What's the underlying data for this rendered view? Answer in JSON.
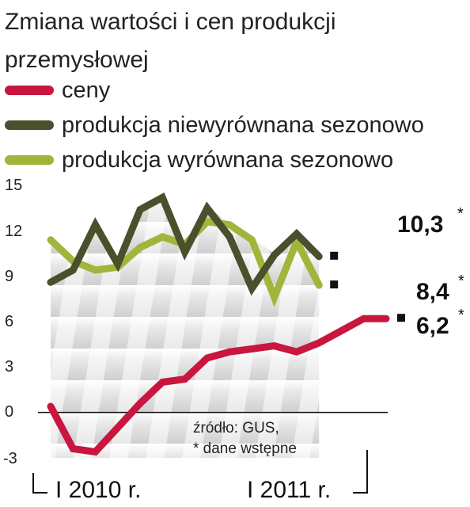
{
  "title": "Zmiana wartości  i cen produkcji przemysłowej",
  "legend": [
    {
      "label": "ceny",
      "color": "#c8163f"
    },
    {
      "label": "produkcja niewyrównana sezonowo",
      "color": "#4b4f2c"
    },
    {
      "label": "produkcja wyrównana sezonowo",
      "color": "#9fb63a"
    }
  ],
  "source_line1": "źródło: GUS,",
  "source_line2": "* dane wstępne",
  "period_labels": [
    "I 2010 r.",
    "I 2011 r."
  ],
  "end_labels": [
    {
      "value": "10,3",
      "star": "*"
    },
    {
      "value": "8,4",
      "star": "*"
    },
    {
      "value": "6,2",
      "star": "*"
    }
  ],
  "chart_data": {
    "type": "line",
    "title": "Zmiana wartości  i cen produkcji przemysłowej",
    "y_ticks": [
      "15",
      "12",
      "9",
      "6",
      "3",
      "0",
      "-3"
    ],
    "ylim": [
      -3,
      15
    ],
    "x_labels": [
      "I 2010 r.",
      "I 2011 r."
    ],
    "points": 16,
    "series": [
      {
        "name": "ceny",
        "color": "#c8163f",
        "values": [
          0.4,
          -2.4,
          -2.6,
          -1.0,
          0.6,
          2.0,
          2.2,
          3.6,
          4.0,
          4.2,
          4.4,
          4.0,
          4.6,
          5.4,
          6.2,
          6.2
        ]
      },
      {
        "name": "produkcja niewyrównana sezonowo",
        "color": "#4b4f2c",
        "values": [
          8.6,
          9.4,
          12.4,
          9.8,
          13.4,
          14.2,
          10.6,
          13.5,
          11.6,
          8.2,
          10.4,
          11.8,
          10.3
        ]
      },
      {
        "name": "produkcja wyrównana sezonowo",
        "color": "#9fb63a",
        "values": [
          11.4,
          10.0,
          9.4,
          9.6,
          10.9,
          11.6,
          11.1,
          12.6,
          12.4,
          11.4,
          7.6,
          11.3,
          8.4
        ]
      }
    ],
    "end_values": [
      "10,3",
      "8,4",
      "6,2"
    ],
    "annotations": [
      "źródło: GUS,",
      "* dane wstępne"
    ]
  }
}
